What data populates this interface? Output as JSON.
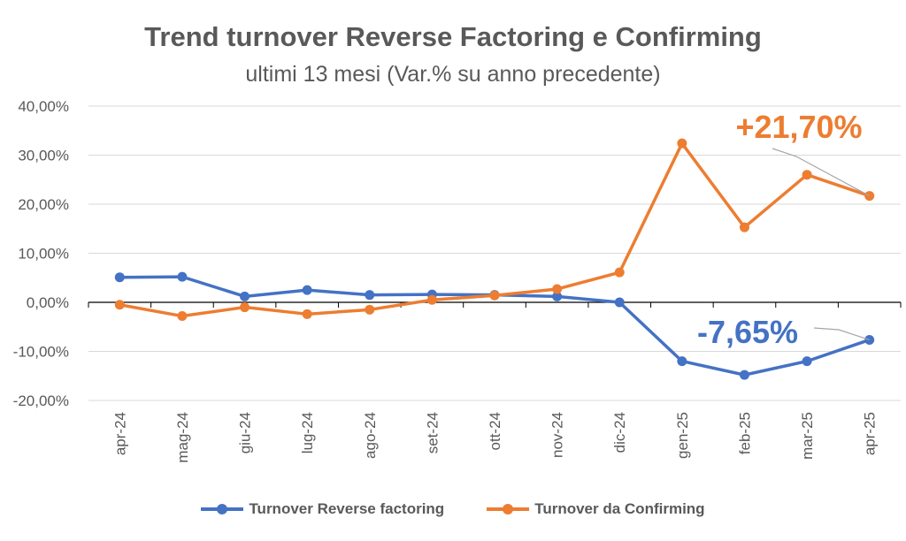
{
  "chart_data": {
    "type": "line",
    "title": "Trend turnover Reverse Factoring e Confirming",
    "subtitle": "ultimi 13 mesi (Var.% su anno precedente)",
    "categories": [
      "apr-24",
      "mag-24",
      "giu-24",
      "lug-24",
      "ago-24",
      "set-24",
      "ott-24",
      "nov-24",
      "dic-24",
      "gen-25",
      "feb-25",
      "mar-25",
      "apr-25"
    ],
    "ylim": [
      -20,
      40
    ],
    "yticks": [
      -20,
      -10,
      0,
      10,
      20,
      30,
      40
    ],
    "ytick_labels": [
      "-20,00%",
      "-10,00%",
      "0,00%",
      "10,00%",
      "20,00%",
      "30,00%",
      "40,00%"
    ],
    "grid": true,
    "legend_position": "bottom",
    "series": [
      {
        "name": "Turnover Reverse factoring",
        "color": "#4472C4",
        "values": [
          5.1,
          5.2,
          1.2,
          2.5,
          1.5,
          1.6,
          1.5,
          1.2,
          0.0,
          -12.0,
          -14.8,
          -12.0,
          -7.65
        ]
      },
      {
        "name": "Turnover da Confirming",
        "color": "#ED7D31",
        "values": [
          -0.5,
          -2.8,
          -1.0,
          -2.4,
          -1.5,
          0.5,
          1.4,
          2.7,
          6.1,
          32.4,
          15.3,
          26.0,
          21.7
        ]
      }
    ],
    "annotations": [
      {
        "text": "+21,70%",
        "series": 1,
        "color": "#ED7D31"
      },
      {
        "text": "-7,65%",
        "series": 0,
        "color": "#4472C4"
      }
    ]
  }
}
